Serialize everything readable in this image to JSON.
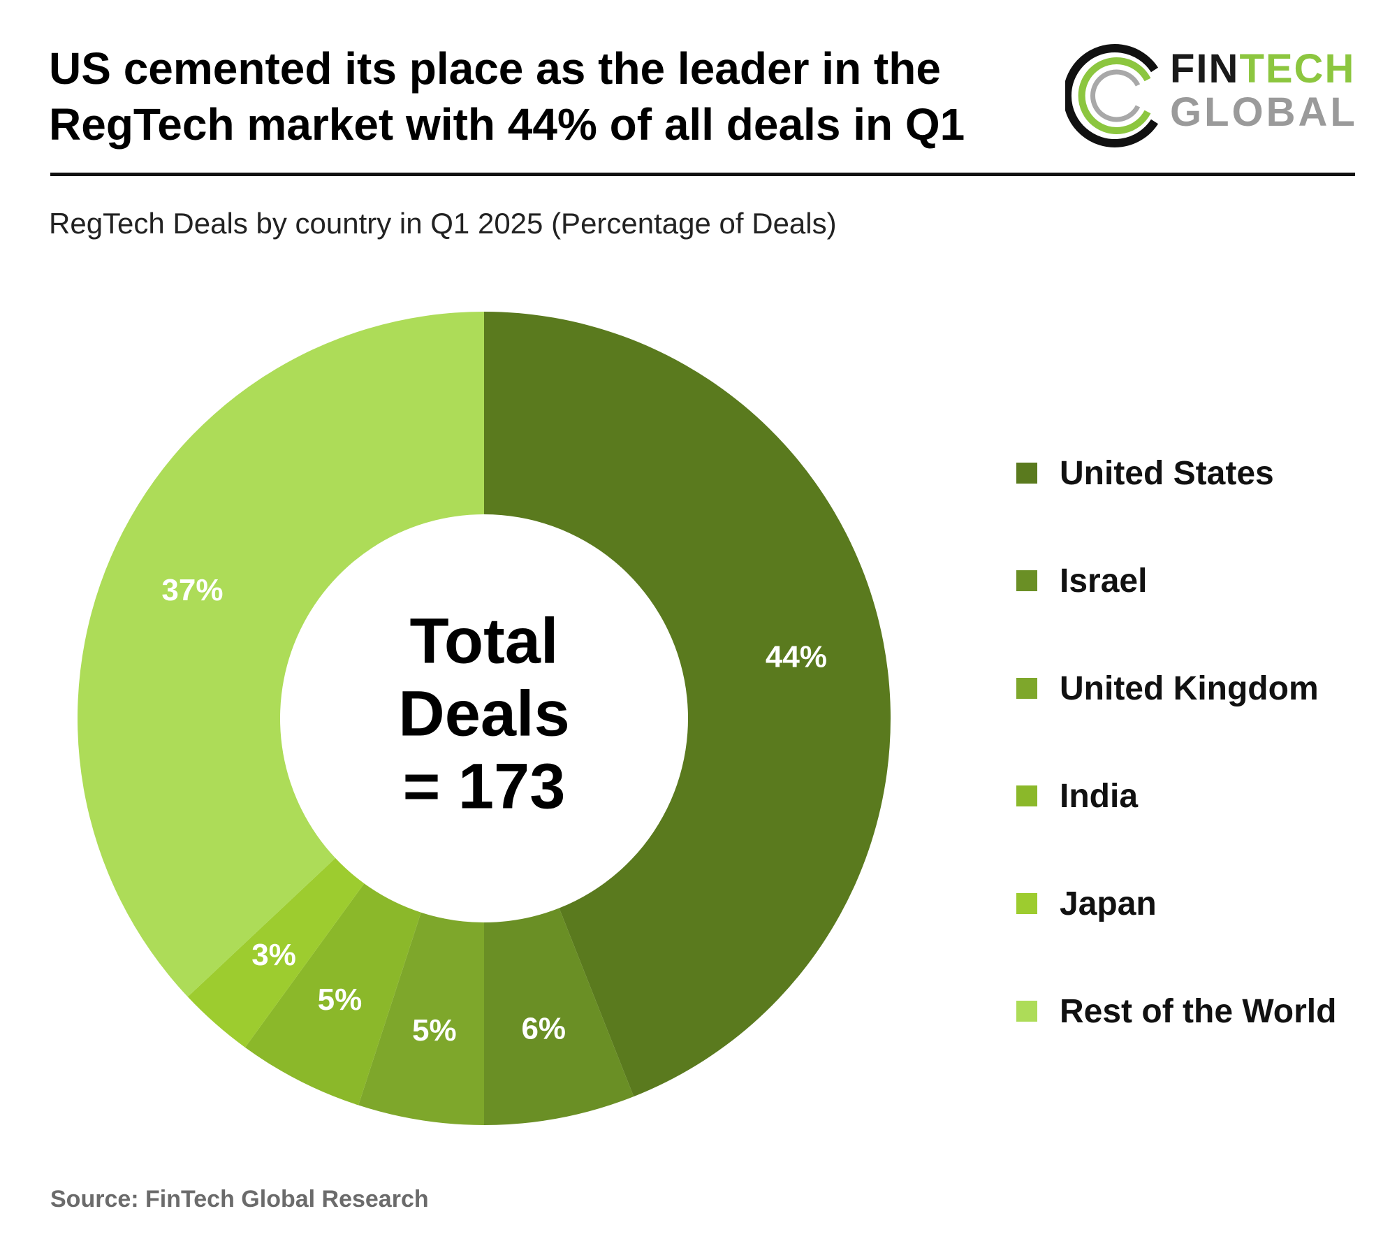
{
  "headline": {
    "line1": "US cemented its place as the leader in the",
    "line2": "RegTech market with 44% of all deals in Q1"
  },
  "logo": {
    "word1a": "FIN",
    "word1b": "TECH",
    "word2": "GLOBAL"
  },
  "subtitle": "RegTech Deals by country in Q1 2025 (Percentage of Deals)",
  "chart_data": {
    "type": "pie",
    "donut": true,
    "title": "RegTech Deals by country in Q1 2025 (Percentage of Deals)",
    "categories": [
      "United States",
      "Israel",
      "United Kingdom",
      "India",
      "Japan",
      "Rest of the World"
    ],
    "values": [
      44,
      6,
      5,
      5,
      3,
      37
    ],
    "data_labels": [
      "44%",
      "6%",
      "5%",
      "5%",
      "3%",
      "37%"
    ],
    "colors": [
      "#5a7a1e",
      "#6a8f25",
      "#7ea72b",
      "#8bb82a",
      "#9dcc2f",
      "#addc58"
    ],
    "center_text": [
      "Total",
      "Deals",
      "= 173"
    ],
    "legend_placement": "right"
  },
  "source": "Source: FinTech Global Research"
}
